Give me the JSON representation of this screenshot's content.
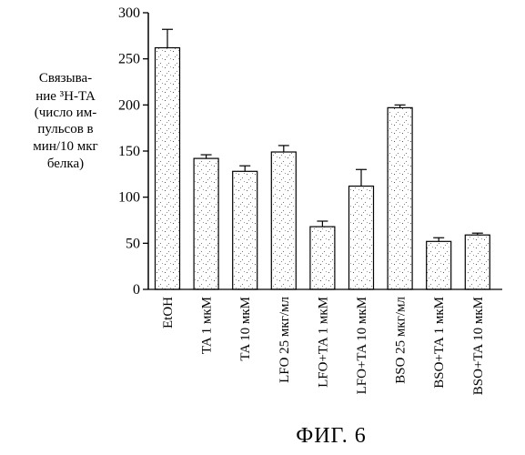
{
  "chart_data": {
    "type": "bar",
    "categories": [
      "EtOH",
      "TA 1 мкМ",
      "TA 10 мкМ",
      "LFO 25 мкг/мл",
      "LFO+TA 1 мкМ",
      "LFO+TA 10 мкМ",
      "BSO 25 мкг/мл",
      "BSO+TA 1 мкМ",
      "BSO+TA 10 мкМ"
    ],
    "values": [
      262,
      142,
      128,
      149,
      68,
      112,
      197,
      52,
      59
    ],
    "errors": [
      20,
      4,
      6,
      7,
      6,
      18,
      3,
      4,
      2
    ],
    "ylabel_lines": [
      "Связыва-",
      "ние ³H-TA",
      "(число им-",
      "пульсов в",
      "мин/10 мкг",
      "белка)"
    ],
    "ylim": [
      0,
      300
    ],
    "yticks": [
      "0",
      "50",
      "100",
      "150",
      "200",
      "250",
      "300"
    ],
    "title": "ФИГ. 6",
    "grid": false
  }
}
